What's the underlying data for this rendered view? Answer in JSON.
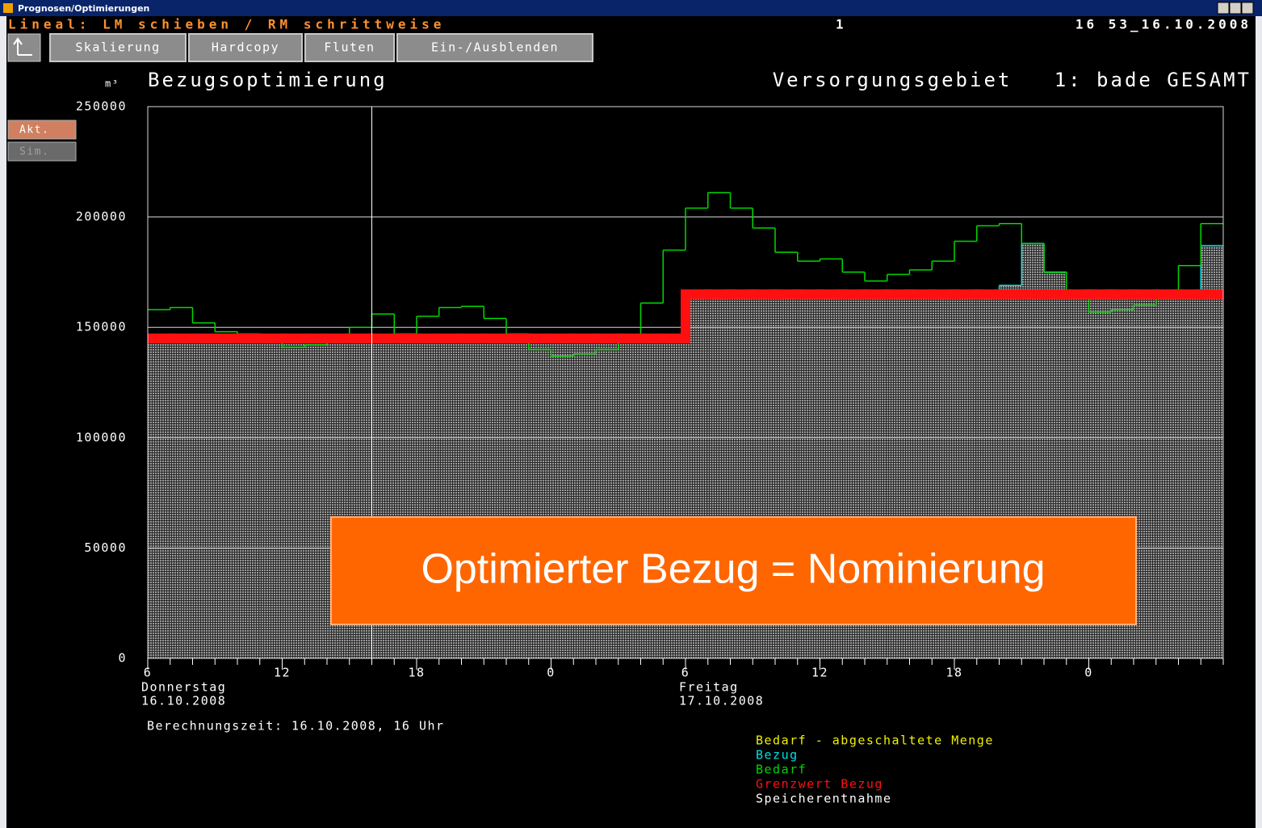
{
  "window": {
    "title": "Prognosen/Optimierungen"
  },
  "status": {
    "hint": "Lineal: LM schieben / RM schrittweise",
    "number": "1",
    "timestamp": "16 53_16.10.2008"
  },
  "toolbar": [
    "Skalierung",
    "Hardcopy",
    "Fluten",
    "Ein-/Ausblenden"
  ],
  "mode_buttons": [
    "Akt.",
    "Sim."
  ],
  "chart_data": {
    "type": "step",
    "title": "Bezugsoptimierung",
    "subtitle": "Versorgungsgebiet   1: bade GESAMT",
    "y_unit": "m³",
    "annotation": "Optimierter Bezug = Nominierung",
    "footnote": "Berechnungszeit: 16.10.2008, 16 Uhr",
    "xlim": [
      0,
      48
    ],
    "ylim": [
      0,
      250000
    ],
    "yticks": [
      0,
      50000,
      100000,
      150000,
      200000,
      250000
    ],
    "xticks": [
      {
        "value": 0,
        "label": "6"
      },
      {
        "value": 6,
        "label": "12"
      },
      {
        "value": 12,
        "label": "18"
      },
      {
        "value": 18,
        "label": "0"
      },
      {
        "value": 24,
        "label": "6"
      },
      {
        "value": 30,
        "label": "12"
      },
      {
        "value": 36,
        "label": "18"
      },
      {
        "value": 42,
        "label": "0"
      }
    ],
    "xminorticks": [
      0,
      1,
      2,
      3,
      4,
      5,
      6,
      7,
      8,
      9,
      10,
      11,
      12,
      13,
      14,
      15,
      16,
      17,
      18,
      19,
      20,
      21,
      22,
      23,
      24,
      25,
      26,
      27,
      28,
      29,
      30,
      31,
      32,
      33,
      34,
      35,
      36,
      37,
      38,
      39,
      40,
      41,
      42,
      43,
      44,
      45,
      46,
      47,
      48
    ],
    "day_labels": [
      {
        "x": 0,
        "day": "Donnerstag",
        "date": "16.10.2008"
      },
      {
        "x": 24,
        "day": "Freitag",
        "date": "17.10.2008"
      }
    ],
    "cursor_x": 10,
    "grid": true,
    "x": [
      0,
      1,
      2,
      3,
      4,
      5,
      6,
      7,
      8,
      9,
      10,
      11,
      12,
      13,
      14,
      15,
      16,
      17,
      18,
      19,
      20,
      21,
      22,
      23,
      24,
      25,
      26,
      27,
      28,
      29,
      30,
      31,
      32,
      33,
      34,
      35,
      36,
      37,
      38,
      39,
      40,
      41,
      42,
      43,
      44,
      45,
      46,
      47
    ],
    "series": [
      {
        "name": "Bezug",
        "color": "#00e0e0",
        "fill": "#8a8a8a",
        "values": [
          145000,
          145000,
          145000,
          145000,
          145000,
          145000,
          145000,
          145000,
          145000,
          145000,
          145000,
          145000,
          145000,
          145000,
          145000,
          145000,
          145000,
          145000,
          145000,
          145000,
          145000,
          145000,
          145000,
          145000,
          165000,
          165000,
          165000,
          165000,
          165000,
          165000,
          165000,
          165000,
          165000,
          165000,
          165000,
          165000,
          165000,
          165000,
          169000,
          188000,
          175000,
          165000,
          165000,
          165000,
          165000,
          165000,
          165000,
          187000
        ]
      },
      {
        "name": "Bedarf",
        "color": "#00d800",
        "values": [
          158000,
          159000,
          152000,
          148000,
          147000,
          146000,
          141000,
          142000,
          144000,
          150000,
          156000,
          147000,
          155000,
          159000,
          159500,
          154000,
          147000,
          140000,
          137000,
          138000,
          140000,
          146000,
          161000,
          185000,
          204000,
          211000,
          204000,
          195000,
          184000,
          180000,
          181000,
          175000,
          171000,
          174000,
          176000,
          180000,
          189000,
          196000,
          197000,
          188000,
          175000,
          165000,
          157000,
          158000,
          160000,
          165000,
          178000,
          197000
        ]
      },
      {
        "name": "Grenzwert Bezug",
        "color": "#ff1010",
        "values": [
          145000,
          145000,
          145000,
          145000,
          145000,
          145000,
          145000,
          145000,
          145000,
          145000,
          145000,
          145000,
          145000,
          145000,
          145000,
          145000,
          145000,
          145000,
          145000,
          145000,
          145000,
          145000,
          145000,
          145000,
          165000,
          165000,
          165000,
          165000,
          165000,
          165000,
          165000,
          165000,
          165000,
          165000,
          165000,
          165000,
          165000,
          165000,
          165000,
          165000,
          165000,
          165000,
          165000,
          165000,
          165000,
          165000,
          165000,
          165000
        ]
      }
    ],
    "legend_entries": [
      {
        "name": "Bedarf - abgeschaltete Menge",
        "color": "#f0f000"
      },
      {
        "name": "Speicherentnahme",
        "color": "#ffffff"
      }
    ]
  }
}
